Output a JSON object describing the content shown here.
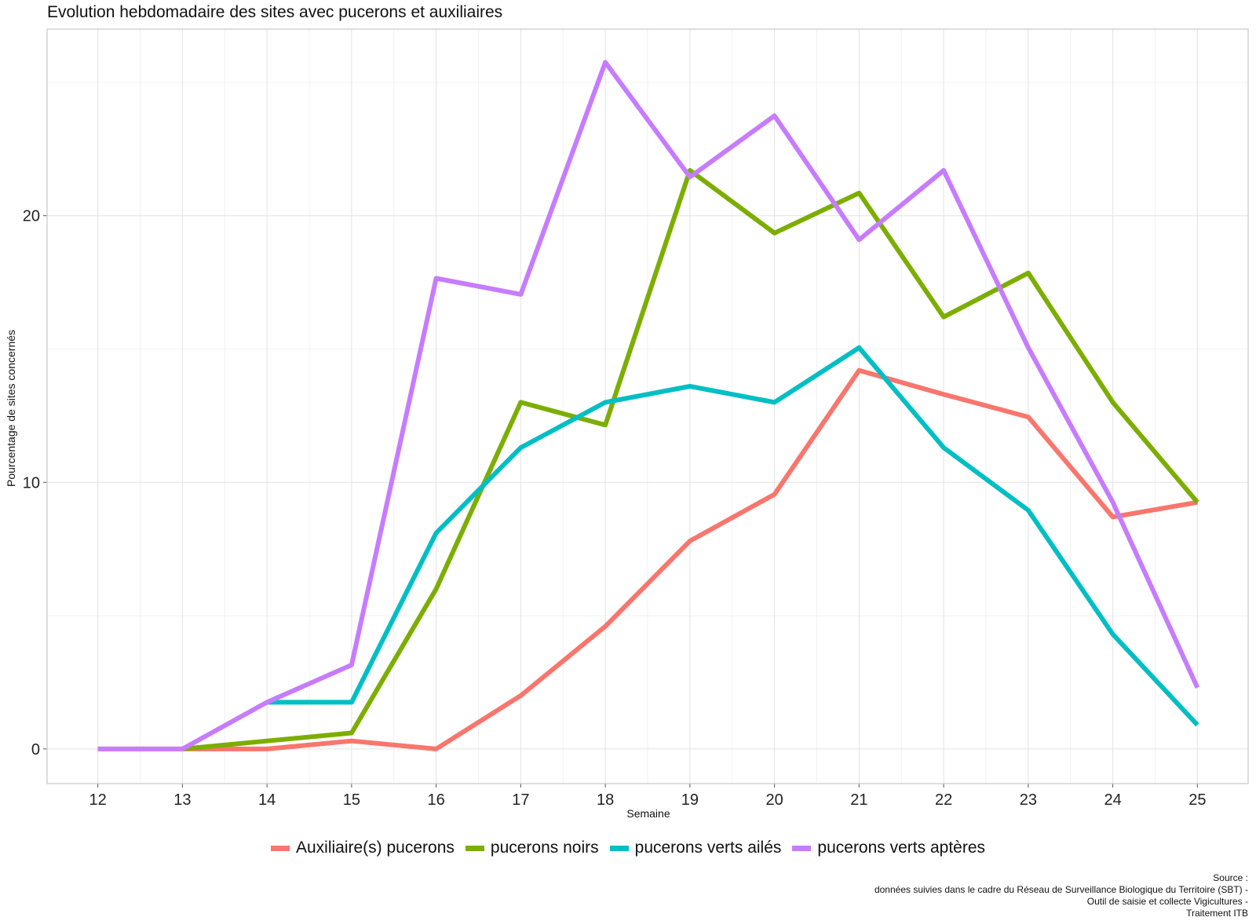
{
  "chart_data": {
    "type": "line",
    "title": "Evolution hebdomadaire des sites avec pucerons et auxiliaires",
    "xlabel": "Semaine",
    "ylabel": "Pourcentage de sites concernés",
    "x": [
      12,
      13,
      14,
      15,
      16,
      17,
      18,
      19,
      20,
      21,
      22,
      23,
      24,
      25
    ],
    "xlim": [
      11.4,
      25.6
    ],
    "ylim": [
      -1.3,
      27.0
    ],
    "y_ticks": [
      0,
      10,
      20
    ],
    "y_minor_ticks": [
      5,
      15,
      25
    ],
    "grid": true,
    "legend_position": "bottom",
    "series": [
      {
        "name": "Auxiliaire(s) pucerons",
        "color": "#f8766d",
        "values": [
          0,
          0,
          0,
          0.3,
          0,
          2.0,
          4.6,
          7.8,
          9.55,
          14.2,
          13.3,
          12.45,
          8.7,
          9.25
        ]
      },
      {
        "name": "pucerons noirs",
        "color": "#7cae00",
        "values": [
          null,
          0,
          0.3,
          0.6,
          6.0,
          13.0,
          12.15,
          21.7,
          19.35,
          20.85,
          16.2,
          17.85,
          13.0,
          9.25
        ]
      },
      {
        "name": "pucerons verts ailés",
        "color": "#00bfc4",
        "values": [
          null,
          null,
          1.75,
          1.75,
          8.1,
          11.3,
          13.0,
          13.6,
          13.0,
          15.05,
          11.3,
          8.95,
          4.3,
          0.9
        ]
      },
      {
        "name": "pucerons verts aptères",
        "color": "#c77cff",
        "values": [
          0,
          0,
          1.75,
          3.15,
          17.65,
          17.05,
          25.75,
          21.45,
          23.75,
          19.1,
          21.7,
          15.05,
          9.25,
          2.3
        ]
      }
    ]
  },
  "source": {
    "lines": [
      "Source :",
      "données suivies dans le cadre du Réseau de Surveillance Biologique du Territoire (SBT) -",
      "Outil de saisie et collecte Vigicultures -",
      "Traitement ITB"
    ]
  }
}
